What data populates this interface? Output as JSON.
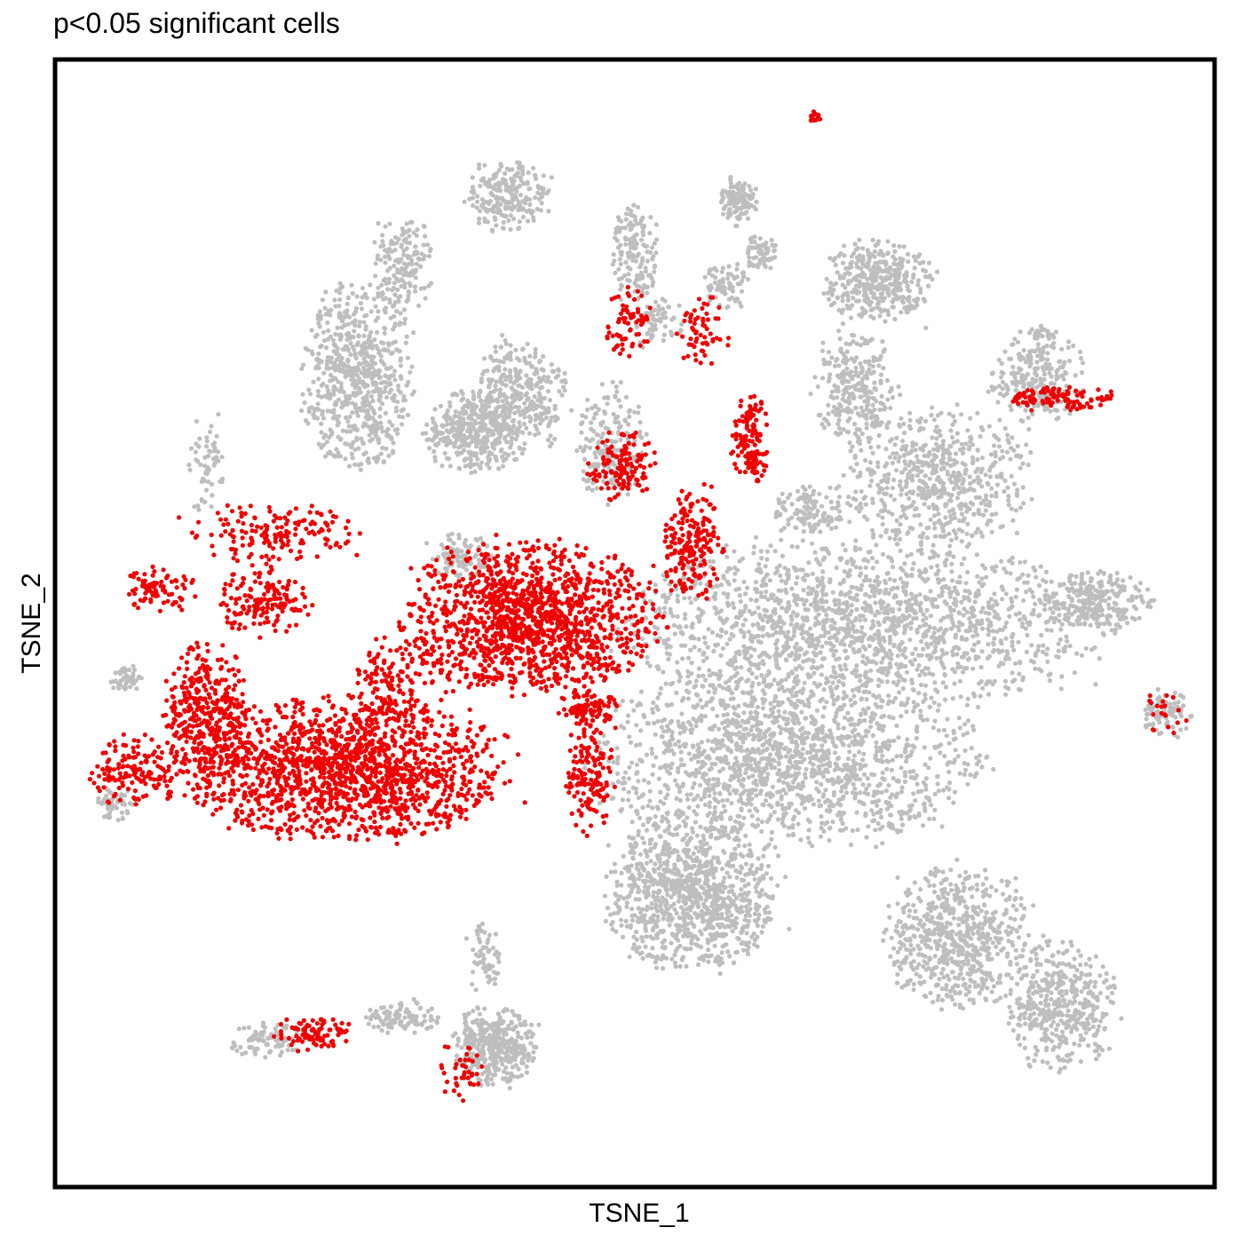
{
  "chart_data": {
    "type": "scatter",
    "title": "p<0.05 significant cells",
    "xlabel": "TSNE_1",
    "ylabel": "TSNE_2",
    "xlim": [
      0,
      100
    ],
    "ylim": [
      0,
      100
    ],
    "grid": false,
    "axis_ticks": false,
    "colors": {
      "significant": "#EE0000",
      "not_significant": "#BEBEBE"
    },
    "categories": [
      "significant",
      "not_significant"
    ],
    "clusters": [
      {
        "status": "not_significant",
        "cx": 63,
        "cy": 38,
        "rx": 16,
        "ry": 7.5,
        "n": 1600
      },
      {
        "status": "not_significant",
        "cx": 55,
        "cy": 26,
        "rx": 7,
        "ry": 6.5,
        "n": 1000
      },
      {
        "status": "not_significant",
        "cx": 78,
        "cy": 22,
        "rx": 6,
        "ry": 6,
        "n": 650
      },
      {
        "status": "not_significant",
        "cx": 87,
        "cy": 16,
        "rx": 4.5,
        "ry": 5.5,
        "n": 420
      },
      {
        "status": "not_significant",
        "cx": 70,
        "cy": 50,
        "rx": 20,
        "ry": 7,
        "n": 1700
      },
      {
        "status": "not_significant",
        "cx": 76,
        "cy": 63,
        "rx": 8,
        "ry": 6,
        "n": 600
      },
      {
        "status": "not_significant",
        "cx": 90,
        "cy": 52,
        "rx": 4.5,
        "ry": 2.5,
        "n": 250
      },
      {
        "status": "not_significant",
        "cx": 69,
        "cy": 71,
        "rx": 3.5,
        "ry": 5,
        "n": 260
      },
      {
        "status": "not_significant",
        "cx": 71,
        "cy": 80.5,
        "rx": 4.5,
        "ry": 3.5,
        "n": 380
      },
      {
        "status": "not_significant",
        "cx": 65,
        "cy": 60,
        "rx": 3,
        "ry": 2,
        "n": 120
      },
      {
        "status": "not_significant",
        "cx": 38,
        "cy": 12.5,
        "rx": 3.5,
        "ry": 3.5,
        "n": 380
      },
      {
        "status": "not_significant",
        "cx": 30,
        "cy": 15,
        "rx": 3,
        "ry": 1.5,
        "n": 100
      },
      {
        "status": "not_significant",
        "cx": 37,
        "cy": 20,
        "rx": 1.5,
        "ry": 3,
        "n": 60
      },
      {
        "status": "not_significant",
        "cx": 26,
        "cy": 72,
        "rx": 4.5,
        "ry": 8,
        "n": 650
      },
      {
        "status": "not_significant",
        "cx": 30,
        "cy": 82,
        "rx": 2.5,
        "ry": 4,
        "n": 160
      },
      {
        "status": "not_significant",
        "cx": 36,
        "cy": 67,
        "rx": 4,
        "ry": 3.5,
        "n": 340
      },
      {
        "status": "not_significant",
        "cx": 40,
        "cy": 70,
        "rx": 4,
        "ry": 5,
        "n": 350
      },
      {
        "status": "not_significant",
        "cx": 48,
        "cy": 66,
        "rx": 3,
        "ry": 5,
        "n": 180
      },
      {
        "status": "not_significant",
        "cx": 52,
        "cy": 77,
        "rx": 2,
        "ry": 3,
        "n": 60
      },
      {
        "status": "not_significant",
        "cx": 58,
        "cy": 80,
        "rx": 2,
        "ry": 2,
        "n": 70
      },
      {
        "status": "not_significant",
        "cx": 35,
        "cy": 56,
        "rx": 2.5,
        "ry": 2,
        "n": 90
      },
      {
        "status": "not_significant",
        "cx": 13,
        "cy": 64,
        "rx": 1.5,
        "ry": 4,
        "n": 60
      },
      {
        "status": "not_significant",
        "cx": 6,
        "cy": 45,
        "rx": 1.5,
        "ry": 1,
        "n": 50
      },
      {
        "status": "not_significant",
        "cx": 5,
        "cy": 34,
        "rx": 1.5,
        "ry": 1.5,
        "n": 50
      },
      {
        "status": "not_significant",
        "cx": 96,
        "cy": 42,
        "rx": 2,
        "ry": 2,
        "n": 90
      },
      {
        "status": "not_significant",
        "cx": 85,
        "cy": 72,
        "rx": 4,
        "ry": 4,
        "n": 250
      },
      {
        "status": "not_significant",
        "cx": 18,
        "cy": 13,
        "rx": 3,
        "ry": 1.5,
        "n": 80
      },
      {
        "status": "significant",
        "cx": 41,
        "cy": 50.5,
        "rx": 10.5,
        "ry": 6.5,
        "n": 1350
      },
      {
        "status": "significant",
        "cx": 46,
        "cy": 42.5,
        "rx": 2.5,
        "ry": 1.5,
        "n": 90
      },
      {
        "status": "significant",
        "cx": 25,
        "cy": 37,
        "rx": 13,
        "ry": 6,
        "n": 1500
      },
      {
        "status": "significant",
        "cx": 13,
        "cy": 42,
        "rx": 3.5,
        "ry": 6,
        "n": 350
      },
      {
        "status": "significant",
        "cx": 7,
        "cy": 37,
        "rx": 4,
        "ry": 3,
        "n": 150
      },
      {
        "status": "significant",
        "cx": 46,
        "cy": 36.5,
        "rx": 2,
        "ry": 5,
        "n": 150
      },
      {
        "status": "significant",
        "cx": 29,
        "cy": 44,
        "rx": 3.5,
        "ry": 5,
        "n": 160
      },
      {
        "status": "significant",
        "cx": 18,
        "cy": 52,
        "rx": 4,
        "ry": 3,
        "n": 150
      },
      {
        "status": "significant",
        "cx": 9,
        "cy": 53,
        "rx": 3,
        "ry": 2,
        "n": 80
      },
      {
        "status": "significant",
        "cx": 19,
        "cy": 58,
        "rx": 7,
        "ry": 2.5,
        "n": 160
      },
      {
        "status": "significant",
        "cx": 55,
        "cy": 57,
        "rx": 2.5,
        "ry": 4.5,
        "n": 200
      },
      {
        "status": "significant",
        "cx": 49,
        "cy": 64,
        "rx": 3,
        "ry": 3,
        "n": 130
      },
      {
        "status": "significant",
        "cx": 60,
        "cy": 66.5,
        "rx": 1.5,
        "ry": 4,
        "n": 140
      },
      {
        "status": "significant",
        "cx": 49.5,
        "cy": 77,
        "rx": 2,
        "ry": 3,
        "n": 70
      },
      {
        "status": "significant",
        "cx": 56,
        "cy": 76,
        "rx": 2.5,
        "ry": 3,
        "n": 60
      },
      {
        "status": "significant",
        "cx": 22,
        "cy": 13.5,
        "rx": 3,
        "ry": 1.5,
        "n": 90
      },
      {
        "status": "significant",
        "cx": 35,
        "cy": 10,
        "rx": 2,
        "ry": 2.5,
        "n": 40
      },
      {
        "status": "significant",
        "cx": 87,
        "cy": 70,
        "rx": 4.5,
        "ry": 1,
        "n": 100
      },
      {
        "status": "significant",
        "cx": 96,
        "cy": 42,
        "rx": 2,
        "ry": 2,
        "n": 20
      },
      {
        "status": "significant",
        "cx": 65.5,
        "cy": 95,
        "rx": 0.6,
        "ry": 0.5,
        "n": 14
      },
      {
        "status": "not_significant",
        "cx": 39,
        "cy": 88,
        "rx": 3.5,
        "ry": 3,
        "n": 220
      },
      {
        "status": "not_significant",
        "cx": 50,
        "cy": 83,
        "rx": 2,
        "ry": 4,
        "n": 140
      },
      {
        "status": "not_significant",
        "cx": 59,
        "cy": 87.5,
        "rx": 1.5,
        "ry": 2,
        "n": 120
      },
      {
        "status": "not_significant",
        "cx": 61,
        "cy": 83,
        "rx": 1.5,
        "ry": 1.5,
        "n": 60
      },
      {
        "status": "not_significant",
        "cx": 85,
        "cy": 76,
        "rx": 1,
        "ry": 0.8,
        "n": 20
      }
    ]
  }
}
